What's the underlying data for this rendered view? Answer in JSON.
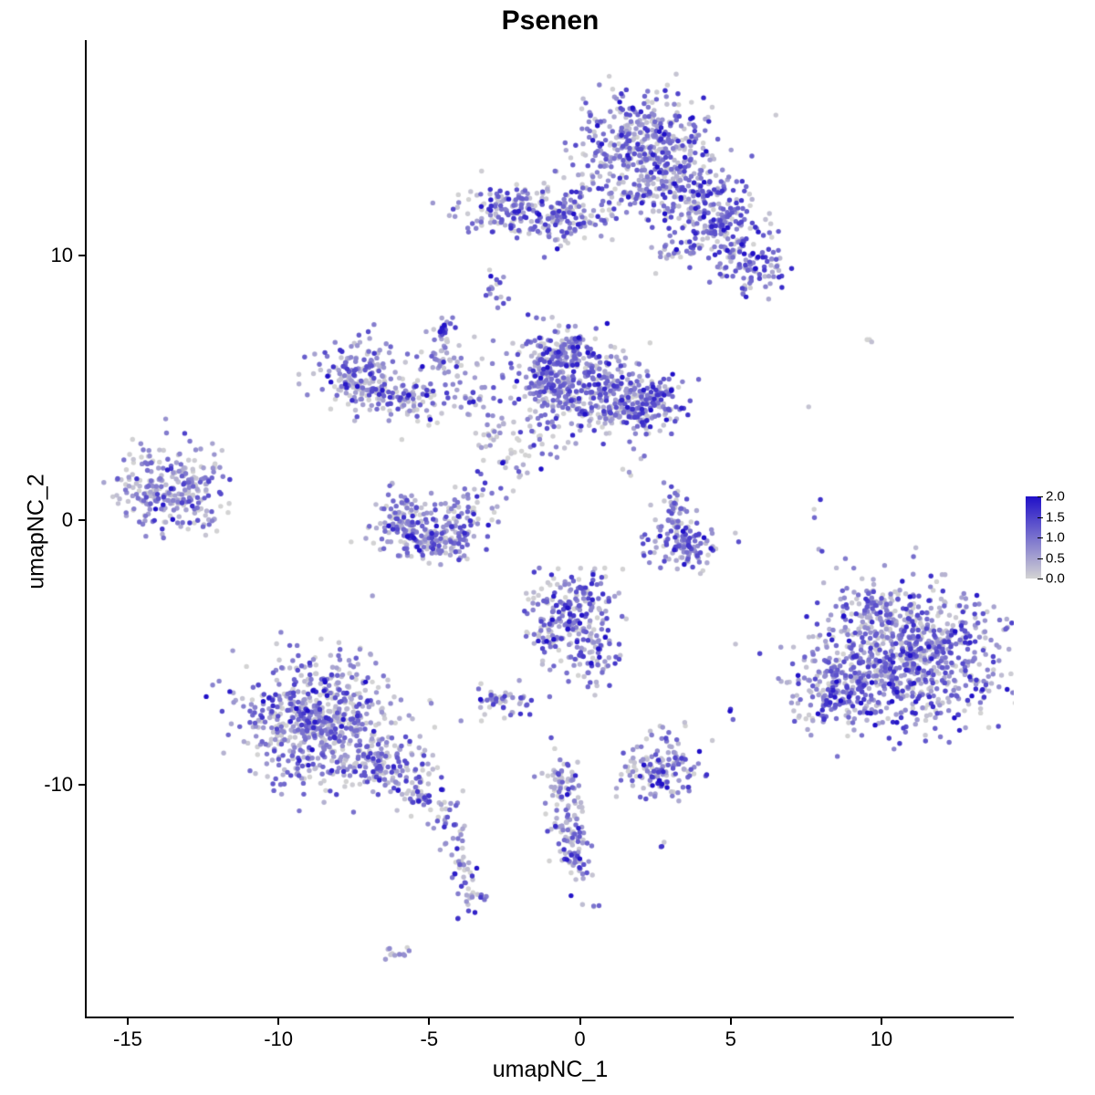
{
  "chart_data": {
    "type": "scatter",
    "title": "Psenen",
    "xlabel": "umapNC_1",
    "ylabel": "umapNC_2",
    "x_range": [
      -16.36,
      14.39
    ],
    "y_range": [
      -18.79,
      18.1
    ],
    "x_ticks": {
      "values": [
        -15,
        -10,
        -5,
        0,
        5,
        10
      ],
      "labels": [
        "-15",
        "-10",
        "-5",
        "0",
        "5",
        "10"
      ]
    },
    "y_ticks": {
      "values": [
        -10,
        0,
        10
      ],
      "labels": [
        "-10",
        "0",
        "10"
      ]
    },
    "legend": {
      "min": 0,
      "max": 2,
      "values": [
        2.0,
        1.5,
        1.0,
        0.5,
        0.0
      ],
      "labels": [
        "2.0",
        "1.5",
        "1.0",
        "0.5",
        "0.0"
      ]
    },
    "colors": {
      "low": "#d3d3d3",
      "high": "#2010c8",
      "background": "#ffffff",
      "axis": "#000000"
    },
    "point_radius": 2.7,
    "seed": 42,
    "grid": false,
    "legend_position": "right",
    "clusters": [
      {
        "x": 2.0,
        "y": 14.4,
        "sx": 1.05,
        "sy": 0.85,
        "n": 360,
        "mean": 0.9
      },
      {
        "x": 3.2,
        "y": 12.6,
        "sx": 0.95,
        "sy": 0.75,
        "n": 220,
        "mean": 0.9
      },
      {
        "x": 4.6,
        "y": 11.0,
        "sx": 0.8,
        "sy": 0.7,
        "n": 170,
        "mean": 0.95
      },
      {
        "x": 5.6,
        "y": 9.6,
        "sx": 0.55,
        "sy": 0.5,
        "n": 90,
        "mean": 1.0
      },
      {
        "x": 3.0,
        "y": 10.1,
        "sx": 0.3,
        "sy": 0.2,
        "n": 20,
        "mean": 0.8
      },
      {
        "x": -1.9,
        "y": 11.7,
        "sx": 1.0,
        "sy": 0.5,
        "n": 190,
        "mean": 1.0
      },
      {
        "x": -0.4,
        "y": 11.3,
        "sx": 0.6,
        "sy": 0.45,
        "n": 70,
        "mean": 0.8
      },
      {
        "x": 0.9,
        "y": 12.0,
        "sx": 0.8,
        "sy": 0.7,
        "n": 45,
        "mean": 0.7
      },
      {
        "x": -2.8,
        "y": 8.7,
        "sx": 0.18,
        "sy": 0.32,
        "n": 16,
        "mean": 0.9
      },
      {
        "x": -4.5,
        "y": 7.0,
        "sx": 0.22,
        "sy": 0.45,
        "n": 28,
        "mean": 0.8
      },
      {
        "x": -0.9,
        "y": 5.4,
        "sx": 0.75,
        "sy": 0.95,
        "n": 280,
        "mean": 0.9
      },
      {
        "x": 0.8,
        "y": 4.7,
        "sx": 0.95,
        "sy": 0.75,
        "n": 240,
        "mean": 0.85
      },
      {
        "x": 2.3,
        "y": 4.3,
        "sx": 0.65,
        "sy": 0.55,
        "n": 140,
        "mean": 1.0
      },
      {
        "x": -0.3,
        "y": 6.4,
        "sx": 0.55,
        "sy": 0.35,
        "n": 70,
        "mean": 0.8
      },
      {
        "x": -7.4,
        "y": 5.7,
        "sx": 0.8,
        "sy": 0.5,
        "n": 120,
        "mean": 0.8
      },
      {
        "x": -7.0,
        "y": 4.8,
        "sx": 0.7,
        "sy": 0.45,
        "n": 100,
        "mean": 0.8
      },
      {
        "x": -5.3,
        "y": 4.6,
        "sx": 0.7,
        "sy": 0.5,
        "n": 55,
        "mean": 0.7
      },
      {
        "x": -3.4,
        "y": 4.5,
        "sx": 0.3,
        "sy": 0.3,
        "n": 22,
        "mean": 0.8
      },
      {
        "x": -4.3,
        "y": 5.9,
        "sx": 0.5,
        "sy": 0.6,
        "n": 40,
        "mean": 0.7
      },
      {
        "x": -2.9,
        "y": 3.3,
        "sx": 0.3,
        "sy": 0.4,
        "n": 15,
        "mean": 0.6
      },
      {
        "x": -1.7,
        "y": 2.7,
        "sx": 0.7,
        "sy": 0.7,
        "n": 35,
        "mean": 0.6
      },
      {
        "x": -13.6,
        "y": 1.2,
        "sx": 0.85,
        "sy": 0.75,
        "n": 270,
        "mean": 0.75
      },
      {
        "x": -12.1,
        "y": 2.3,
        "sx": 0.3,
        "sy": 0.3,
        "n": 8,
        "mean": 0.5
      },
      {
        "x": -5.9,
        "y": 0.2,
        "sx": 0.45,
        "sy": 0.5,
        "n": 80,
        "mean": 0.85
      },
      {
        "x": -5.0,
        "y": -0.7,
        "sx": 0.8,
        "sy": 0.4,
        "n": 150,
        "mean": 0.85
      },
      {
        "x": -4.0,
        "y": 0.0,
        "sx": 0.4,
        "sy": 0.5,
        "n": 60,
        "mean": 0.8
      },
      {
        "x": -3.0,
        "y": 1.2,
        "sx": 0.5,
        "sy": 0.6,
        "n": 25,
        "mean": 0.6
      },
      {
        "x": 3.2,
        "y": 0.2,
        "sx": 0.3,
        "sy": 0.5,
        "n": 45,
        "mean": 0.8
      },
      {
        "x": 3.5,
        "y": -1.0,
        "sx": 0.6,
        "sy": 0.4,
        "n": 110,
        "mean": 1.0
      },
      {
        "x": 2.2,
        "y": 1.8,
        "sx": 0.4,
        "sy": 0.5,
        "n": 8,
        "mean": 0.6
      },
      {
        "x": -0.3,
        "y": -3.7,
        "sx": 0.75,
        "sy": 0.85,
        "n": 240,
        "mean": 0.9
      },
      {
        "x": 0.6,
        "y": -5.2,
        "sx": 0.4,
        "sy": 0.5,
        "n": 50,
        "mean": 0.8
      },
      {
        "x": -2.6,
        "y": -6.8,
        "sx": 0.5,
        "sy": 0.3,
        "n": 55,
        "mean": 0.7
      },
      {
        "x": -8.7,
        "y": -7.6,
        "sx": 1.25,
        "sy": 1.2,
        "n": 650,
        "mean": 0.8
      },
      {
        "x": -6.5,
        "y": -9.3,
        "sx": 0.7,
        "sy": 0.5,
        "n": 110,
        "mean": 0.8
      },
      {
        "x": -5.3,
        "y": -10.2,
        "sx": 0.5,
        "sy": 0.4,
        "n": 55,
        "mean": 0.7
      },
      {
        "x": -4.4,
        "y": -11.5,
        "sx": 0.3,
        "sy": 0.6,
        "n": 30,
        "mean": 0.7
      },
      {
        "x": -3.9,
        "y": -13.0,
        "sx": 0.25,
        "sy": 0.6,
        "n": 25,
        "mean": 0.7
      },
      {
        "x": -3.6,
        "y": -14.3,
        "sx": 0.3,
        "sy": 0.35,
        "n": 22,
        "mean": 0.8
      },
      {
        "x": -6.1,
        "y": -16.3,
        "sx": 0.35,
        "sy": 0.15,
        "n": 12,
        "mean": 0.5
      },
      {
        "x": -0.6,
        "y": -10.0,
        "sx": 0.35,
        "sy": 0.55,
        "n": 60,
        "mean": 0.8
      },
      {
        "x": -0.3,
        "y": -11.7,
        "sx": 0.3,
        "sy": 0.65,
        "n": 65,
        "mean": 0.8
      },
      {
        "x": -0.1,
        "y": -13.0,
        "sx": 0.25,
        "sy": 0.3,
        "n": 30,
        "mean": 0.9
      },
      {
        "x": 2.6,
        "y": -9.5,
        "sx": 0.65,
        "sy": 0.5,
        "n": 130,
        "mean": 0.8
      },
      {
        "x": 2.9,
        "y": -8.1,
        "sx": 0.3,
        "sy": 0.3,
        "n": 12,
        "mean": 0.6
      },
      {
        "x": 10.9,
        "y": -5.2,
        "sx": 1.55,
        "sy": 1.25,
        "n": 850,
        "mean": 0.9
      },
      {
        "x": 8.6,
        "y": -6.4,
        "sx": 0.7,
        "sy": 0.75,
        "n": 160,
        "mean": 0.9
      },
      {
        "x": 9.7,
        "y": -3.2,
        "sx": 0.5,
        "sy": 0.4,
        "n": 60,
        "mean": 0.7
      },
      {
        "x": 9.6,
        "y": 6.9,
        "sx": 0.25,
        "sy": 0.15,
        "n": 3,
        "mean": 0.3
      },
      {
        "x": 7.7,
        "y": 4.4,
        "sx": 0.1,
        "sy": 0.1,
        "n": 1,
        "mean": 0.9
      },
      {
        "x": 7.9,
        "y": 0.8,
        "sx": 0.15,
        "sy": 0.3,
        "n": 3,
        "mean": 0.5
      },
      {
        "x": 8.1,
        "y": -1.2,
        "sx": 0.1,
        "sy": 0.1,
        "n": 2,
        "mean": 0.9
      },
      {
        "x": 5.0,
        "y": -7.3,
        "sx": 0.15,
        "sy": 0.25,
        "n": 3,
        "mean": 0.8
      },
      {
        "x": 3.5,
        "y": -7.7,
        "sx": 0.1,
        "sy": 0.1,
        "n": 2,
        "mean": 0.4
      },
      {
        "x": 2.7,
        "y": -12.2,
        "sx": 0.12,
        "sy": 0.2,
        "n": 3,
        "mean": 0.8
      },
      {
        "x": 0.5,
        "y": -14.6,
        "sx": 0.2,
        "sy": 0.15,
        "n": 4,
        "mean": 0.6
      }
    ]
  }
}
